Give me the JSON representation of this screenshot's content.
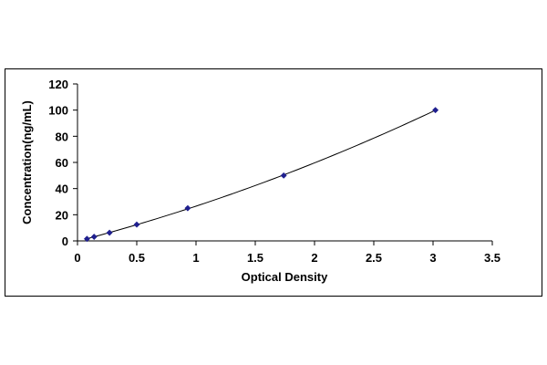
{
  "chart_data": {
    "type": "scatter",
    "title": "",
    "xlabel": "Optical Density",
    "ylabel": "Concentration(ng/mL)",
    "xlim": [
      0,
      3.5
    ],
    "ylim": [
      0,
      120
    ],
    "x_ticks": [
      0,
      0.5,
      1,
      1.5,
      2,
      2.5,
      3,
      3.5
    ],
    "y_ticks": [
      0,
      20,
      40,
      60,
      80,
      100,
      120
    ],
    "x_tick_labels": [
      "0",
      "0.5",
      "1",
      "1.5",
      "2",
      "2.5",
      "3",
      "3.5"
    ],
    "y_tick_labels": [
      "0",
      "20",
      "40",
      "60",
      "80",
      "100",
      "120"
    ],
    "grid": false,
    "legend": "none",
    "trendline": "smooth fitted curve through points",
    "marker": "diamond",
    "marker_color": "#1f1f8f",
    "line_color": "#000000",
    "series": [
      {
        "x": [
          0.08,
          0.14,
          0.27,
          0.5,
          0.93,
          1.74,
          3.02
        ],
        "y": [
          1.56,
          3.12,
          6.25,
          12.5,
          25,
          50,
          100
        ]
      }
    ]
  }
}
